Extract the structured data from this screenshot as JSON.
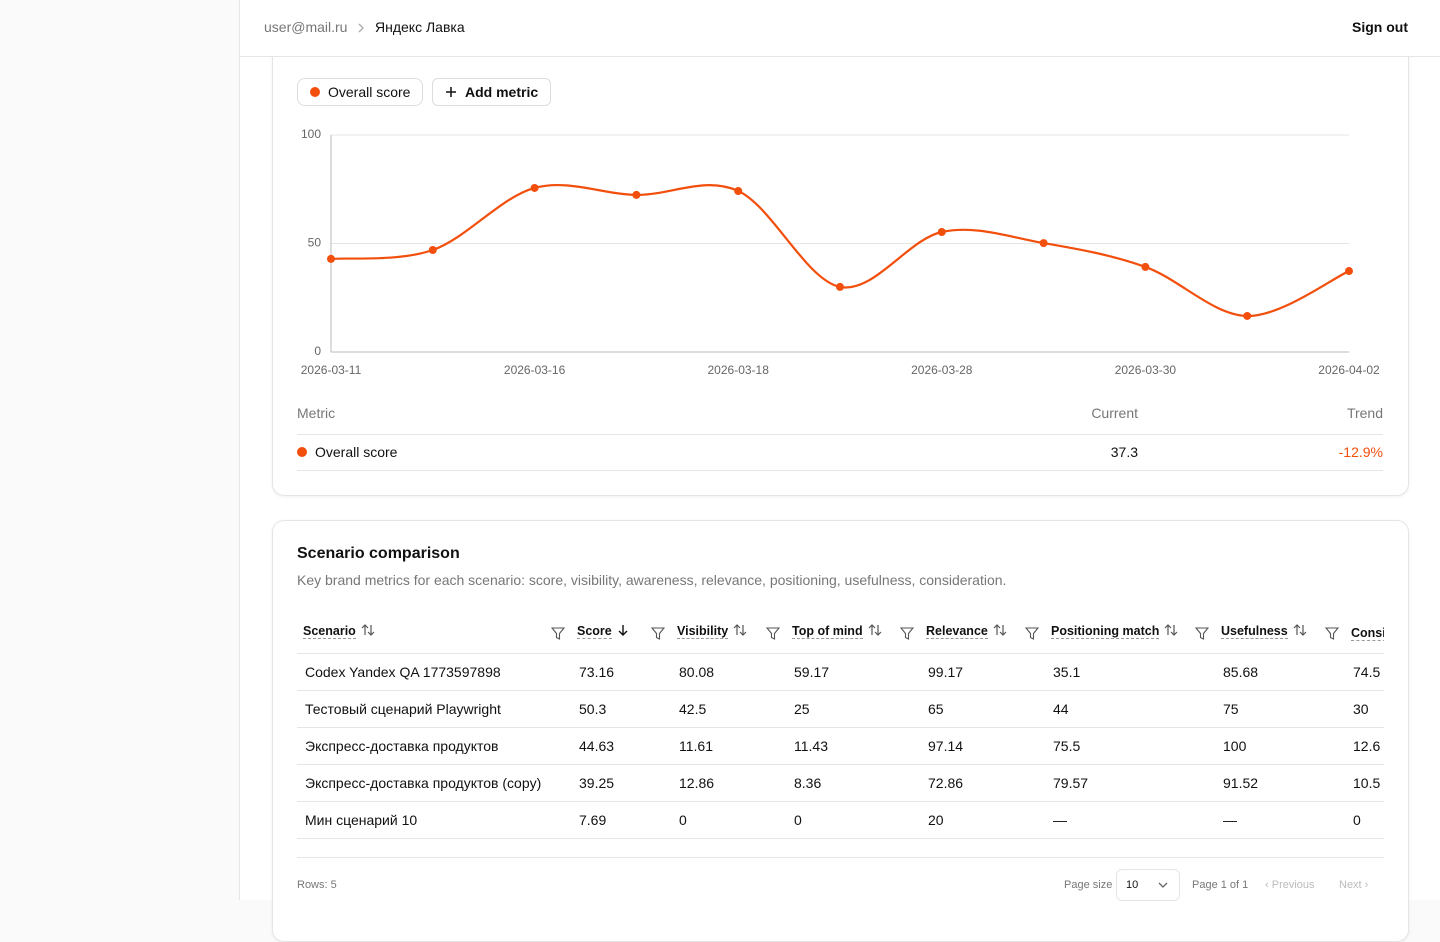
{
  "header": {
    "user": "user@mail.ru",
    "org": "Яндекс Лавка",
    "sign_out": "Sign out"
  },
  "chart_card": {
    "add_metric": "Add metric",
    "chart_data": {
      "type": "line",
      "categories": [
        "2026-03-11",
        null,
        "2026-03-16",
        null,
        "2026-03-18",
        null,
        "2026-03-28",
        null,
        "2026-03-30",
        null,
        "2026-04-02"
      ],
      "series": [
        {
          "name": "Overall score",
          "color": "#f24e0c",
          "values": [
            42.9,
            47,
            75.6,
            72.4,
            74.2,
            30,
            55.3,
            50.2,
            39.2,
            16.6,
            37.3
          ]
        }
      ],
      "ylim": [
        0,
        100
      ],
      "yticks": [
        0,
        50,
        100
      ],
      "grid": true
    },
    "metric_table": {
      "headers": [
        "Metric",
        "Current",
        "Trend"
      ],
      "rows": [
        [
          "Overall score",
          "37.3",
          "-12.9%"
        ]
      ]
    }
  },
  "scenario": {
    "title": "Scenario comparison",
    "description": "Key brand metrics for each scenario: score, visibility, awareness, relevance, positioning, usefulness, consideration.",
    "columns": [
      "Scenario",
      "Score",
      "Visibility",
      "Top of mind",
      "Relevance",
      "Positioning match",
      "Usefulness",
      "Consi"
    ],
    "rows": [
      [
        "Codex Yandex QA 1773597898",
        "73.16",
        "80.08",
        "59.17",
        "99.17",
        "35.1",
        "85.68",
        "74.5"
      ],
      [
        "Тестовый сценарий Playwright",
        "50.3",
        "42.5",
        "25",
        "65",
        "44",
        "75",
        "30"
      ],
      [
        "Экспресс-доставка продуктов",
        "44.63",
        "11.61",
        "11.43",
        "97.14",
        "75.5",
        "100",
        "12.6"
      ],
      [
        "Экспресс-доставка продуктов (copy)",
        "39.25",
        "12.86",
        "8.36",
        "72.86",
        "79.57",
        "91.52",
        "10.5"
      ],
      [
        "Мин сценарий 10",
        "7.69",
        "0",
        "0",
        "20",
        "—",
        "—",
        "0"
      ]
    ],
    "footer": {
      "rows": "Rows: 5",
      "page_size_label": "Page size",
      "page_size": "10",
      "page_info": "Page 1 of 1",
      "previous": "Previous",
      "next": "Next"
    }
  }
}
